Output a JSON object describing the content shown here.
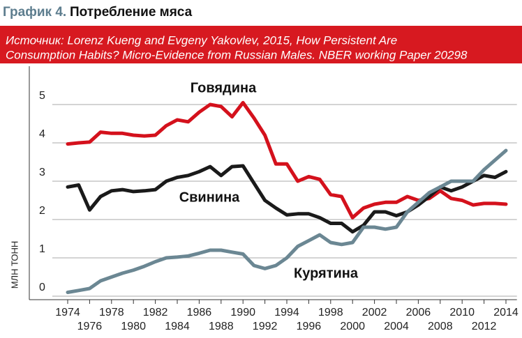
{
  "chart_data": {
    "type": "line",
    "title_label": "График 4.",
    "title": "Потребление мяса",
    "source_lines": [
      "Источник: Lorenz Kueng and Evgeny Yakovlev,  2015, How Persistent Are",
      "Consumption Habits? Micro-Evidence from Russian Males. NBER working Paper 20298"
    ],
    "y_label": "МЛН ТОНН",
    "x": [
      1974,
      1975,
      1976,
      1977,
      1978,
      1979,
      1980,
      1981,
      1982,
      1983,
      1984,
      1985,
      1986,
      1987,
      1988,
      1989,
      1990,
      1991,
      1992,
      1993,
      1994,
      1995,
      1996,
      1997,
      1998,
      1999,
      2000,
      2001,
      2002,
      2003,
      2004,
      2005,
      2006,
      2007,
      2008,
      2009,
      2010,
      2011,
      2012,
      2013,
      2014
    ],
    "series": [
      {
        "name": "Говядина",
        "color": "#d4111c",
        "values": [
          3.97,
          4.0,
          4.02,
          4.28,
          4.25,
          4.25,
          4.2,
          4.18,
          4.2,
          4.45,
          4.6,
          4.55,
          4.8,
          5.0,
          4.95,
          4.68,
          5.05,
          4.65,
          4.2,
          3.45,
          3.45,
          3.0,
          3.12,
          3.05,
          2.65,
          2.6,
          2.05,
          2.3,
          2.4,
          2.45,
          2.45,
          2.6,
          2.5,
          2.55,
          2.75,
          2.55,
          2.5,
          2.38,
          2.42,
          2.42,
          2.4
        ]
      },
      {
        "name": "Свинина",
        "color": "#1a1a1a",
        "values": [
          2.85,
          2.9,
          2.25,
          2.6,
          2.75,
          2.78,
          2.73,
          2.75,
          2.78,
          3.0,
          3.1,
          3.15,
          3.25,
          3.38,
          3.15,
          3.38,
          3.4,
          2.95,
          2.5,
          2.3,
          2.12,
          2.15,
          2.15,
          2.05,
          1.9,
          1.9,
          1.68,
          1.85,
          2.2,
          2.2,
          2.1,
          2.2,
          2.38,
          2.6,
          2.85,
          2.75,
          2.85,
          3.0,
          3.15,
          3.1,
          3.25
        ]
      },
      {
        "name": "Курятина",
        "color": "#6b8793",
        "values": [
          0.1,
          0.15,
          0.2,
          0.4,
          0.5,
          0.6,
          0.68,
          0.78,
          0.9,
          1.0,
          1.02,
          1.05,
          1.12,
          1.2,
          1.2,
          1.15,
          1.1,
          0.8,
          0.72,
          0.8,
          1.0,
          1.3,
          1.45,
          1.6,
          1.4,
          1.35,
          1.4,
          1.8,
          1.8,
          1.75,
          1.8,
          2.2,
          2.45,
          2.7,
          2.85,
          3.0,
          3.0,
          3.0,
          3.3,
          3.55,
          3.8
        ]
      }
    ],
    "xlim": [
      1972,
      2015
    ],
    "xticks": [
      1974,
      1976,
      1978,
      1980,
      1982,
      1984,
      1986,
      1988,
      1990,
      1992,
      1994,
      1996,
      1998,
      2000,
      2002,
      2004,
      2006,
      2008,
      2010,
      2012,
      2014
    ],
    "ylim": [
      0,
      6
    ],
    "yticks": [
      0,
      1,
      2,
      3,
      4,
      5
    ],
    "grid": true
  }
}
